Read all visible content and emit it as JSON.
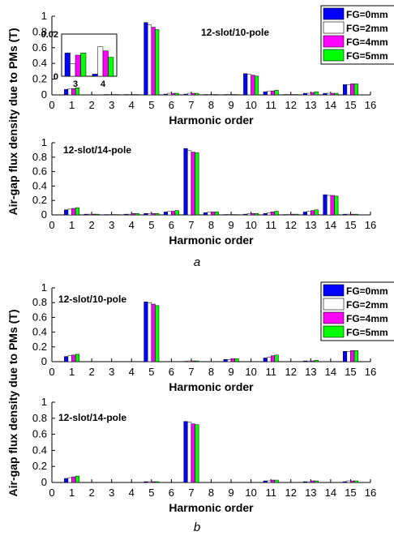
{
  "y_axis_label": "Air-gap flux density due to PMs (T)",
  "colors": {
    "FG=0mm": "#0000ff",
    "FG=2mm": "#ffffff",
    "FG=4mm": "#ff00ff",
    "FG=5mm": "#00ff00"
  },
  "figures": [
    {
      "caption": "a"
    },
    {
      "caption": "b"
    }
  ],
  "chart_data": [
    {
      "type": "bar",
      "group": "a",
      "title": "12-slot/10-pole",
      "xlabel": "Harmonic order",
      "ylabel": "Air-gap flux density due to PMs (T)",
      "xlim": [
        0,
        16
      ],
      "ylim": [
        0,
        1
      ],
      "xticks": [
        "0",
        "1",
        "2",
        "3",
        "4",
        "5",
        "6",
        "7",
        "8",
        "9",
        "10",
        "11",
        "12",
        "13",
        "14",
        "15",
        "16"
      ],
      "yticks": [
        "0",
        "0.2",
        "0.4",
        "0.6",
        "0.8",
        "1"
      ],
      "legend": {
        "position": "top-right",
        "entries": [
          "FG=0mm",
          "FG=2mm",
          "FG=4mm",
          "FG=5mm"
        ]
      },
      "categories": [
        1,
        2,
        3,
        4,
        5,
        6,
        7,
        8,
        9,
        10,
        11,
        12,
        13,
        14,
        15
      ],
      "series": [
        {
          "name": "FG=0mm",
          "values": [
            0.07,
            0.0,
            0.005,
            0.005,
            0.92,
            0.01,
            0.01,
            0.005,
            0.005,
            0.27,
            0.04,
            0.005,
            0.02,
            0.02,
            0.13
          ]
        },
        {
          "name": "FG=2mm",
          "values": [
            0.08,
            0.0,
            0.005,
            0.005,
            0.89,
            0.02,
            0.02,
            0.005,
            0.005,
            0.26,
            0.05,
            0.005,
            0.02,
            0.02,
            0.13
          ]
        },
        {
          "name": "FG=4mm",
          "values": [
            0.08,
            0.0,
            0.005,
            0.005,
            0.86,
            0.02,
            0.02,
            0.005,
            0.005,
            0.25,
            0.05,
            0.005,
            0.03,
            0.02,
            0.14
          ]
        },
        {
          "name": "FG=5mm",
          "values": [
            0.09,
            0.0,
            0.005,
            0.005,
            0.83,
            0.02,
            0.02,
            0.005,
            0.005,
            0.24,
            0.06,
            0.005,
            0.04,
            0.02,
            0.14
          ]
        }
      ],
      "inset": {
        "ylim": [
          0,
          0.02
        ],
        "yticks": [
          "0",
          "0.02"
        ],
        "xticks": [
          "3",
          "4"
        ],
        "categories": [
          3,
          4
        ],
        "series": [
          {
            "name": "FG=0mm",
            "values": [
              0.011,
              0.001
            ]
          },
          {
            "name": "FG=2mm",
            "values": [
              0.006,
              0.014
            ]
          },
          {
            "name": "FG=4mm",
            "values": [
              0.01,
              0.012
            ]
          },
          {
            "name": "FG=5mm",
            "values": [
              0.011,
              0.009
            ]
          }
        ]
      }
    },
    {
      "type": "bar",
      "group": "a",
      "title": "12-slot/14-pole",
      "xlabel": "Harmonic order",
      "ylabel": "",
      "xlim": [
        0,
        16
      ],
      "ylim": [
        0,
        1
      ],
      "xticks": [
        "0",
        "1",
        "2",
        "3",
        "4",
        "5",
        "6",
        "7",
        "8",
        "9",
        "10",
        "11",
        "12",
        "13",
        "14",
        "15",
        "16"
      ],
      "yticks": [
        "0",
        "0.2",
        "0.4",
        "0.6",
        "0.8",
        "1"
      ],
      "categories": [
        1,
        2,
        3,
        4,
        5,
        6,
        7,
        8,
        9,
        10,
        11,
        12,
        13,
        14,
        15
      ],
      "series": [
        {
          "name": "FG=0mm",
          "values": [
            0.07,
            0.01,
            0.005,
            0.01,
            0.02,
            0.04,
            0.92,
            0.03,
            0.005,
            0.01,
            0.02,
            0.005,
            0.04,
            0.28,
            0.01
          ]
        },
        {
          "name": "FG=2mm",
          "values": [
            0.08,
            0.01,
            0.005,
            0.01,
            0.02,
            0.05,
            0.89,
            0.04,
            0.005,
            0.02,
            0.03,
            0.005,
            0.05,
            0.27,
            0.01
          ]
        },
        {
          "name": "FG=4mm",
          "values": [
            0.09,
            0.01,
            0.005,
            0.02,
            0.02,
            0.05,
            0.87,
            0.04,
            0.005,
            0.02,
            0.04,
            0.01,
            0.06,
            0.27,
            0.01
          ]
        },
        {
          "name": "FG=5mm",
          "values": [
            0.1,
            0.01,
            0.005,
            0.02,
            0.02,
            0.06,
            0.86,
            0.04,
            0.005,
            0.02,
            0.05,
            0.01,
            0.07,
            0.26,
            0.01
          ]
        }
      ]
    },
    {
      "type": "bar",
      "group": "b",
      "title": "12-slot/10-pole",
      "xlabel": "Harmonic order",
      "ylabel": "Air-gap flux density due to PMs (T)",
      "xlim": [
        0,
        16
      ],
      "ylim": [
        0,
        1
      ],
      "xticks": [
        "0",
        "1",
        "2",
        "3",
        "4",
        "5",
        "6",
        "7",
        "8",
        "9",
        "10",
        "11",
        "12",
        "13",
        "14",
        "15",
        "16"
      ],
      "yticks": [
        "0",
        "0.2",
        "0.4",
        "0.6",
        "0.8",
        "1"
      ],
      "legend": {
        "position": "top-right",
        "entries": [
          "FG=0mm",
          "FG=2mm",
          "FG=4mm",
          "FG=5mm"
        ]
      },
      "categories": [
        1,
        2,
        3,
        4,
        5,
        6,
        7,
        8,
        9,
        10,
        11,
        12,
        13,
        14,
        15
      ],
      "series": [
        {
          "name": "FG=0mm",
          "values": [
            0.07,
            0.0,
            0.0,
            0.0,
            0.81,
            0.0,
            0.005,
            0.0,
            0.03,
            0.0,
            0.05,
            0.0,
            0.01,
            0.0,
            0.14
          ]
        },
        {
          "name": "FG=2mm",
          "values": [
            0.08,
            0.0,
            0.0,
            0.0,
            0.8,
            0.0,
            0.01,
            0.0,
            0.03,
            0.0,
            0.06,
            0.0,
            0.01,
            0.0,
            0.14
          ]
        },
        {
          "name": "FG=4mm",
          "values": [
            0.09,
            0.0,
            0.0,
            0.0,
            0.78,
            0.0,
            0.01,
            0.0,
            0.04,
            0.0,
            0.08,
            0.0,
            0.01,
            0.0,
            0.15
          ]
        },
        {
          "name": "FG=5mm",
          "values": [
            0.1,
            0.0,
            0.0,
            0.0,
            0.76,
            0.0,
            0.01,
            0.0,
            0.04,
            0.0,
            0.09,
            0.0,
            0.02,
            0.0,
            0.15
          ]
        }
      ]
    },
    {
      "type": "bar",
      "group": "b",
      "title": "12-slot/14-pole",
      "xlabel": "Harmonic order",
      "ylabel": "",
      "xlim": [
        0,
        16
      ],
      "ylim": [
        0,
        1
      ],
      "xticks": [
        "0",
        "1",
        "2",
        "3",
        "4",
        "5",
        "6",
        "7",
        "8",
        "9",
        "10",
        "11",
        "12",
        "13",
        "14",
        "15",
        "16"
      ],
      "yticks": [
        "0",
        "0.2",
        "0.4",
        "0.6",
        "0.8",
        "1"
      ],
      "categories": [
        1,
        2,
        3,
        4,
        5,
        6,
        7,
        8,
        9,
        10,
        11,
        12,
        13,
        14,
        15
      ],
      "series": [
        {
          "name": "FG=0mm",
          "values": [
            0.05,
            0.0,
            0.0,
            0.0,
            0.01,
            0.0,
            0.76,
            0.0,
            0.0,
            0.0,
            0.02,
            0.0,
            0.01,
            0.0,
            0.01
          ]
        },
        {
          "name": "FG=2mm",
          "values": [
            0.06,
            0.0,
            0.0,
            0.0,
            0.01,
            0.0,
            0.75,
            0.0,
            0.0,
            0.0,
            0.02,
            0.0,
            0.01,
            0.0,
            0.02
          ]
        },
        {
          "name": "FG=4mm",
          "values": [
            0.07,
            0.0,
            0.0,
            0.0,
            0.01,
            0.0,
            0.73,
            0.0,
            0.0,
            0.0,
            0.03,
            0.0,
            0.02,
            0.0,
            0.02
          ]
        },
        {
          "name": "FG=5mm",
          "values": [
            0.08,
            0.0,
            0.0,
            0.0,
            0.01,
            0.0,
            0.72,
            0.0,
            0.0,
            0.0,
            0.03,
            0.0,
            0.02,
            0.0,
            0.02
          ]
        }
      ]
    }
  ]
}
